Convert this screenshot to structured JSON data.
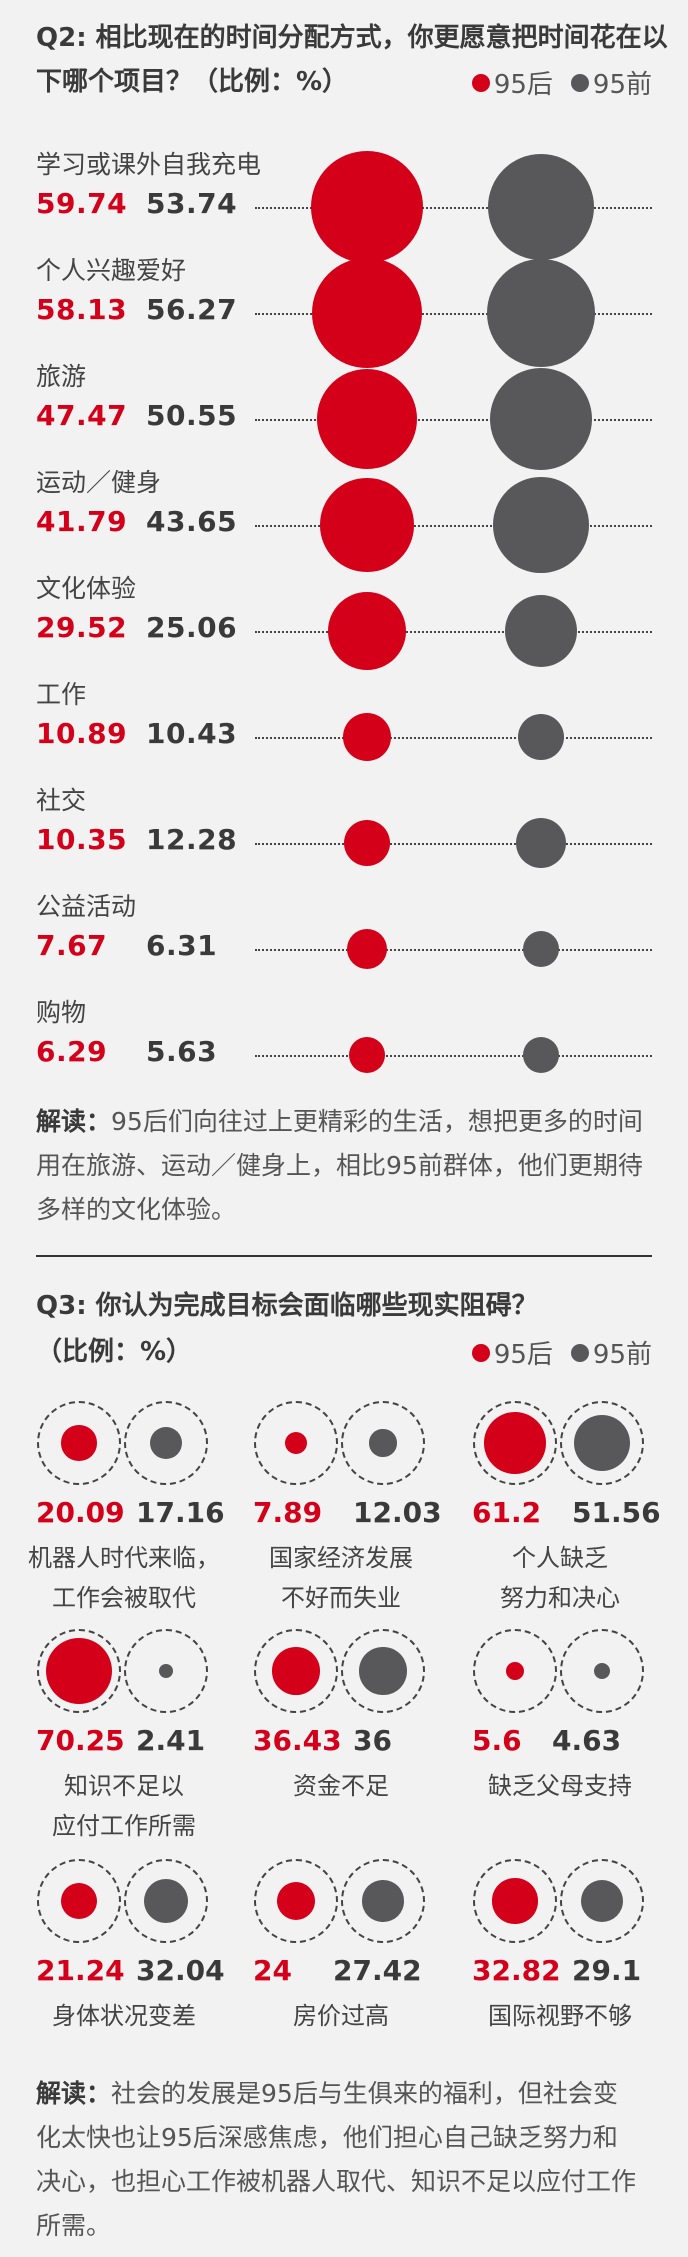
{
  "colors": {
    "post95": "#d4001a",
    "pre95": "#58585a",
    "background": "#f2f2f2"
  },
  "legend": {
    "post95": "95后",
    "pre95": "95前"
  },
  "q2": {
    "title_line1": "Q2: 相比现在的时间分配方式，你更愿意把时间花在以",
    "title_line2": "下哪个项目？（比例：%）",
    "note_label": "解读：",
    "note_line1": "95后们向往过上更精彩的生活，想把更多的时间",
    "note_line2": "用在旅游、运动／健身上，相比95前群体，他们更期待",
    "note_line3": "多样的文化体验。"
  },
  "q3": {
    "title": "Q3: 你认为完成目标会面临哪些现实阻碍？",
    "subtitle": "（比例：%）",
    "note_label": "解读：",
    "note_line1": "社会的发展是95后与生俱来的福利，但社会变",
    "note_line2": "化太快也让95后深感焦虑，他们担心自己缺乏努力和",
    "note_line3": "决心，也担心工作被机器人取代、知识不足以应付工作",
    "note_line4": "所需。"
  },
  "chart_data": [
    {
      "type": "bubble",
      "series": [
        {
          "name": "95后"
        },
        {
          "name": "95前"
        }
      ],
      "categories": [
        "学习或课外自我充电",
        "个人兴趣爱好",
        "旅游",
        "运动／健身",
        "文化体验",
        "工作",
        "社交",
        "公益活动",
        "购物"
      ],
      "post95_values": [
        "59.74",
        "58.13",
        "47.47",
        "41.79",
        "29.52",
        "10.89",
        "10.35",
        "7.67",
        "6.29"
      ],
      "pre95_values": [
        "53.74",
        "56.27",
        "50.55",
        "43.65",
        "25.06",
        "10.43",
        "12.28",
        "6.31",
        "5.63"
      ]
    },
    {
      "type": "bubble",
      "series": [
        {
          "name": "95后"
        },
        {
          "name": "95前"
        }
      ],
      "items": [
        {
          "label_line1": "机器人时代来临，",
          "label_line2": "工作会被取代",
          "post95": "20.09",
          "pre95": "17.16"
        },
        {
          "label_line1": "国家经济发展",
          "label_line2": "不好而失业",
          "post95": "7.89",
          "pre95": "12.03"
        },
        {
          "label_line1": "个人缺乏",
          "label_line2": "努力和决心",
          "post95": "61.2",
          "pre95": "51.56"
        },
        {
          "label_line1": "知识不足以",
          "label_line2": "应付工作所需",
          "post95": "70.25",
          "pre95": "2.41"
        },
        {
          "label_line1": "资金不足",
          "label_line2": "",
          "post95": "36.43",
          "pre95": "36"
        },
        {
          "label_line1": "缺乏父母支持",
          "label_line2": "",
          "post95": "5.6",
          "pre95": "4.63"
        },
        {
          "label_line1": "身体状况变差",
          "label_line2": "",
          "post95": "21.24",
          "pre95": "32.04"
        },
        {
          "label_line1": "房价过高",
          "label_line2": "",
          "post95": "24",
          "pre95": "27.42"
        },
        {
          "label_line1": "国际视野不够",
          "label_line2": "",
          "post95": "32.82",
          "pre95": "29.1"
        }
      ]
    }
  ]
}
